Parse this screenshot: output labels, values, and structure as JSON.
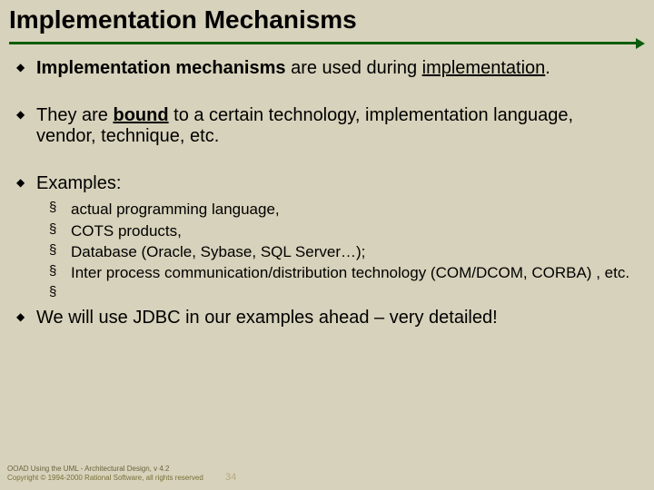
{
  "title": "Implementation Mechanisms",
  "rule_color": "#0b5d0b",
  "bg_color": "#d7d2bb",
  "body_color": "#000000",
  "bullets": {
    "b1_strong": "Implementation mechanisms",
    "b1_rest1": " are used during ",
    "b1_under": "implementation",
    "b1_rest2": ".",
    "b2_pre": "They are ",
    "b2_under": "bound",
    "b2_post": " to a certain technology, implementation language, vendor, technique, etc.",
    "b3": "Examples:",
    "b4": "We will use JDBC in our examples ahead – very detailed!"
  },
  "sub": {
    "s1": "actual programming language,",
    "s2": "COTS products,",
    "s3": "Database (Oracle, Sybase, SQL Server…);",
    "s4": "Inter process communication/distribution technology (COM/DCOM, CORBA) , etc.",
    "s5": ""
  },
  "footer": {
    "line1": "OOAD Using the UML - Architectural Design, v 4.2",
    "line2": "Copyright © 1994-2000 Rational Software, all rights reserved"
  },
  "pagenum": "34"
}
